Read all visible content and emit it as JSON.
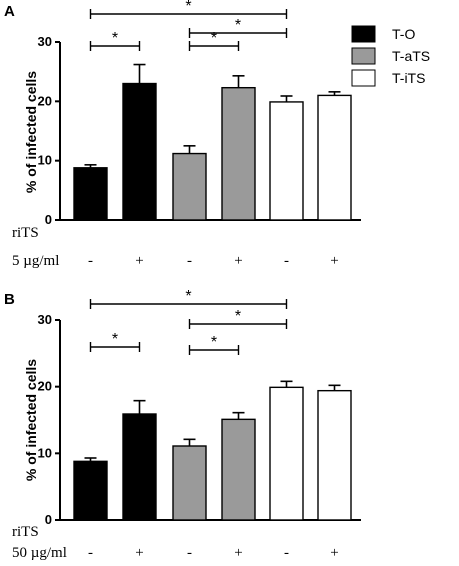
{
  "colors": {
    "black_bar": "#000000",
    "grey_bar": "#9a9a9a",
    "white_bar": "#ffffff",
    "stroke": "#000000"
  },
  "legend": {
    "items": [
      {
        "label": "T-O",
        "fill": "#000000"
      },
      {
        "label": "T-aTS",
        "fill": "#9a9a9a"
      },
      {
        "label": "T-iTS",
        "fill": "#ffffff"
      }
    ]
  },
  "chart_data": [
    {
      "type": "bar",
      "panel_label": "A",
      "ylabel": "% of infected cells",
      "ylim": [
        0,
        30
      ],
      "yticks": [
        0,
        10,
        20,
        30
      ],
      "conditions": [
        {
          "name": "riTS",
          "values": [
            "",
            "",
            "",
            "",
            "",
            ""
          ]
        },
        {
          "name": "5 µg/ml",
          "values": [
            "-",
            "+",
            "-",
            "+",
            "-",
            "+"
          ]
        }
      ],
      "bars": [
        {
          "group": "T-O",
          "treatment": "-",
          "value": 8.8,
          "error": 0.5
        },
        {
          "group": "T-O",
          "treatment": "+",
          "value": 23.0,
          "error": 3.2
        },
        {
          "group": "T-aTS",
          "treatment": "-",
          "value": 11.2,
          "error": 1.3
        },
        {
          "group": "T-aTS",
          "treatment": "+",
          "value": 22.3,
          "error": 2.0
        },
        {
          "group": "T-iTS",
          "treatment": "-",
          "value": 19.9,
          "error": 1.0
        },
        {
          "group": "T-iTS",
          "treatment": "+",
          "value": 21.0,
          "error": 0.6
        }
      ],
      "significance": [
        {
          "from": 0,
          "to": 1,
          "label": "*"
        },
        {
          "from": 2,
          "to": 3,
          "label": "*"
        },
        {
          "from": 2,
          "to": 4,
          "label": "*"
        },
        {
          "from": 0,
          "to": 4,
          "label": "*"
        }
      ]
    },
    {
      "type": "bar",
      "panel_label": "B",
      "ylabel": "% of infected cells",
      "ylim": [
        0,
        30
      ],
      "yticks": [
        0,
        10,
        20,
        30
      ],
      "conditions": [
        {
          "name": "riTS",
          "values": [
            "",
            "",
            "",
            "",
            "",
            ""
          ]
        },
        {
          "name": "50 µg/ml",
          "values": [
            "-",
            "+",
            "-",
            "+",
            "-",
            "+"
          ]
        }
      ],
      "bars": [
        {
          "group": "T-O",
          "treatment": "-",
          "value": 8.8,
          "error": 0.5
        },
        {
          "group": "T-O",
          "treatment": "+",
          "value": 15.9,
          "error": 2.0
        },
        {
          "group": "T-aTS",
          "treatment": "-",
          "value": 11.1,
          "error": 1.0
        },
        {
          "group": "T-aTS",
          "treatment": "+",
          "value": 15.1,
          "error": 1.0
        },
        {
          "group": "T-iTS",
          "treatment": "-",
          "value": 19.9,
          "error": 0.9
        },
        {
          "group": "T-iTS",
          "treatment": "+",
          "value": 19.4,
          "error": 0.8
        }
      ],
      "significance": [
        {
          "from": 0,
          "to": 1,
          "label": "*"
        },
        {
          "from": 2,
          "to": 3,
          "label": "*"
        },
        {
          "from": 2,
          "to": 4,
          "label": "*"
        },
        {
          "from": 0,
          "to": 4,
          "label": "*"
        }
      ]
    }
  ]
}
